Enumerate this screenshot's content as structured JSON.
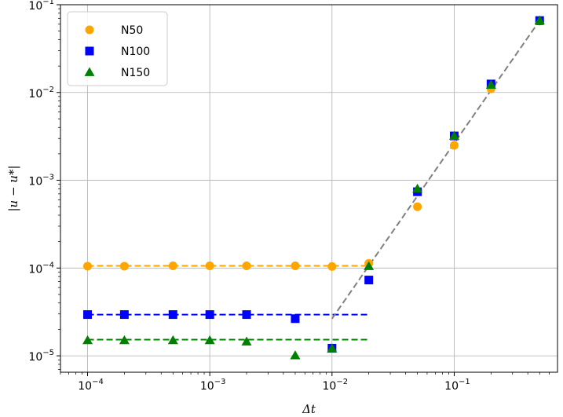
{
  "chart_data": {
    "type": "scatter",
    "xlabel": "Δt",
    "ylabel": "|u − u*|",
    "xscale": "log",
    "yscale": "log",
    "xlim": [
      6e-05,
      0.7
    ],
    "ylim": [
      6.5e-06,
      0.1
    ],
    "grid": true,
    "legend_position": "top-left",
    "x_ticks": [
      {
        "value": 0.0001,
        "base": "10",
        "exp": "−4"
      },
      {
        "value": 0.001,
        "base": "10",
        "exp": "−3"
      },
      {
        "value": 0.01,
        "base": "10",
        "exp": "−2"
      },
      {
        "value": 0.1,
        "base": "10",
        "exp": "−1"
      }
    ],
    "y_ticks": [
      {
        "value": 1e-05,
        "base": "10",
        "exp": "−5"
      },
      {
        "value": 0.0001,
        "base": "10",
        "exp": "−4"
      },
      {
        "value": 0.001,
        "base": "10",
        "exp": "−3"
      },
      {
        "value": 0.01,
        "base": "10",
        "exp": "−2"
      },
      {
        "value": 0.1,
        "base": "10",
        "exp": "−1"
      }
    ],
    "series": [
      {
        "name": "N50",
        "marker": "circle",
        "color": "#FFA500",
        "x": [
          0.0001,
          0.0002,
          0.0005,
          0.001,
          0.002,
          0.005,
          0.01,
          0.02,
          0.05,
          0.1,
          0.2,
          0.5
        ],
        "y": [
          0.000105,
          0.000105,
          0.000106,
          0.000106,
          0.000106,
          0.000106,
          0.000104,
          0.000113,
          0.0005,
          0.0025,
          0.011,
          0.065
        ]
      },
      {
        "name": "N100",
        "marker": "square",
        "color": "#0000FF",
        "x": [
          0.0001,
          0.0002,
          0.0005,
          0.001,
          0.002,
          0.005,
          0.01,
          0.02,
          0.05,
          0.1,
          0.2,
          0.5
        ],
        "y": [
          2.95e-05,
          2.95e-05,
          2.95e-05,
          2.95e-05,
          2.95e-05,
          2.65e-05,
          1.22e-05,
          7.3e-05,
          0.00074,
          0.0032,
          0.0125,
          0.066
        ]
      },
      {
        "name": "N150",
        "marker": "triangle",
        "color": "#008000",
        "x": [
          0.0001,
          0.0002,
          0.0005,
          0.001,
          0.002,
          0.005,
          0.01,
          0.02,
          0.05,
          0.1,
          0.2,
          0.5
        ],
        "y": [
          1.5e-05,
          1.5e-05,
          1.5e-05,
          1.5e-05,
          1.45e-05,
          1.01e-05,
          1.21e-05,
          0.000105,
          0.0008,
          0.0032,
          0.0122,
          0.066
        ]
      }
    ],
    "reference_lines": [
      {
        "color": "#FFA500",
        "x": [
          0.0001,
          0.02
        ],
        "y": [
          0.000106,
          0.000106
        ]
      },
      {
        "color": "#0000FF",
        "x": [
          0.0001,
          0.02
        ],
        "y": [
          2.95e-05,
          2.95e-05
        ]
      },
      {
        "color": "#008000",
        "x": [
          0.0001,
          0.02
        ],
        "y": [
          1.53e-05,
          1.53e-05
        ]
      },
      {
        "color": "#808080",
        "x": [
          0.01,
          0.5
        ],
        "y": [
          2.65e-05,
          0.066
        ]
      }
    ]
  }
}
